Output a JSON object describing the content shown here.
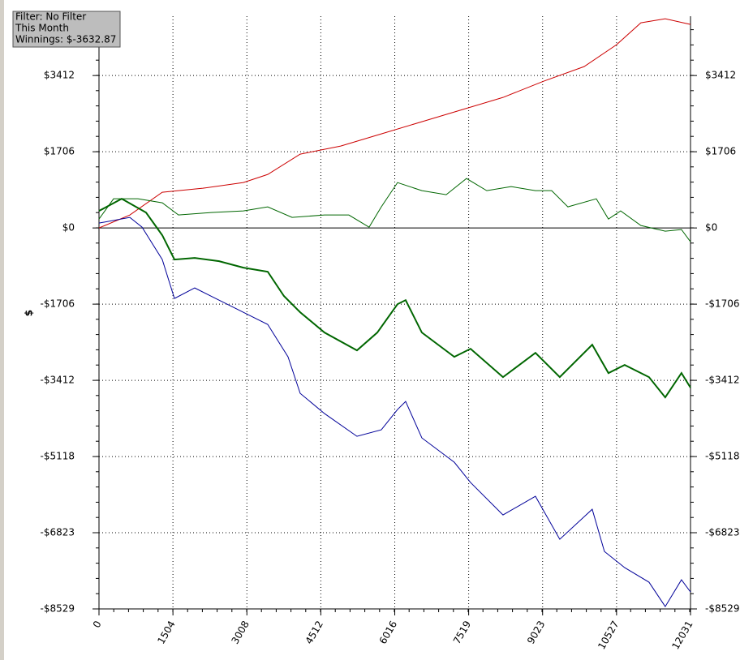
{
  "chart_data": {
    "type": "line",
    "info": [
      "Filter: No Filter",
      "This Month",
      "Winnings: $-3632.87"
    ],
    "ylabel": "$",
    "xlim": [
      0,
      12031
    ],
    "xticks": [
      0,
      1504,
      3008,
      4512,
      6016,
      7519,
      9023,
      10527,
      12031
    ],
    "ylim": [
      -8529,
      4740
    ],
    "yticks": [
      {
        "value": -8529,
        "label": "-$8529"
      },
      {
        "value": -6823,
        "label": "-$6823"
      },
      {
        "value": -5118,
        "label": "-$5118"
      },
      {
        "value": -3412,
        "label": "-$3412"
      },
      {
        "value": -1706,
        "label": "-$1706"
      },
      {
        "value": 0,
        "label": "$0"
      },
      {
        "value": 1706,
        "label": "$1706"
      },
      {
        "value": 3412,
        "label": "$3412"
      }
    ],
    "grid": true,
    "series": [
      {
        "color": "#cc0000",
        "width": 1,
        "x": [
          0,
          627,
          1287,
          2112,
          2937,
          3432,
          4092,
          4917,
          5742,
          6567,
          7392,
          8217,
          9042,
          9867,
          10527,
          11022,
          11517,
          12031
        ],
        "values": [
          0,
          290,
          799,
          889,
          1016,
          1198,
          1652,
          1833,
          2106,
          2378,
          2650,
          2922,
          3285,
          3612,
          4102,
          4592,
          4683,
          4556
        ]
      },
      {
        "color": "#006600",
        "width": 1,
        "x": [
          0,
          297,
          792,
          1287,
          1617,
          2277,
          2937,
          3432,
          3927,
          4587,
          5082,
          5494,
          5742,
          6072,
          6567,
          7062,
          7475,
          7887,
          8382,
          8877,
          9207,
          9537,
          10115,
          10362,
          10610,
          11022,
          11517,
          11847,
          12031
        ],
        "values": [
          199,
          653,
          653,
          563,
          290,
          345,
          381,
          472,
          236,
          290,
          290,
          18,
          472,
          1016,
          835,
          744,
          1107,
          835,
          926,
          835,
          835,
          472,
          653,
          199,
          381,
          54,
          -73,
          -36,
          -309
        ]
      },
      {
        "color": "#006600",
        "width": 2,
        "x": [
          0,
          462,
          957,
          1287,
          1535,
          1947,
          2442,
          2937,
          3432,
          3762,
          4092,
          4587,
          5247,
          5660,
          6072,
          6237,
          6567,
          7227,
          7557,
          8217,
          8877,
          9372,
          10032,
          10362,
          10692,
          11187,
          11517,
          11847,
          12031
        ],
        "values": [
          381,
          653,
          345,
          -163,
          -708,
          -672,
          -744,
          -889,
          -980,
          -1525,
          -1888,
          -2342,
          -2741,
          -2342,
          -1706,
          -1616,
          -2342,
          -2886,
          -2705,
          -3340,
          -2796,
          -3340,
          -2614,
          -3249,
          -3067,
          -3340,
          -3793,
          -3249,
          -3576
        ]
      },
      {
        "color": "#000099",
        "width": 1,
        "x": [
          0,
          627,
          875,
          1287,
          1535,
          1947,
          2442,
          2937,
          3432,
          3845,
          4092,
          4587,
          5247,
          5742,
          6072,
          6237,
          6567,
          7227,
          7557,
          8217,
          8877,
          9372,
          10032,
          10280,
          10692,
          11187,
          11517,
          11847,
          12031
        ],
        "values": [
          109,
          236,
          18,
          -708,
          -1579,
          -1343,
          -1616,
          -1888,
          -2160,
          -2886,
          -3703,
          -4156,
          -4665,
          -4519,
          -4065,
          -3884,
          -4701,
          -5246,
          -5699,
          -6425,
          -6008,
          -6970,
          -6298,
          -7242,
          -7605,
          -7931,
          -8476,
          -7877,
          -8150
        ]
      }
    ]
  }
}
